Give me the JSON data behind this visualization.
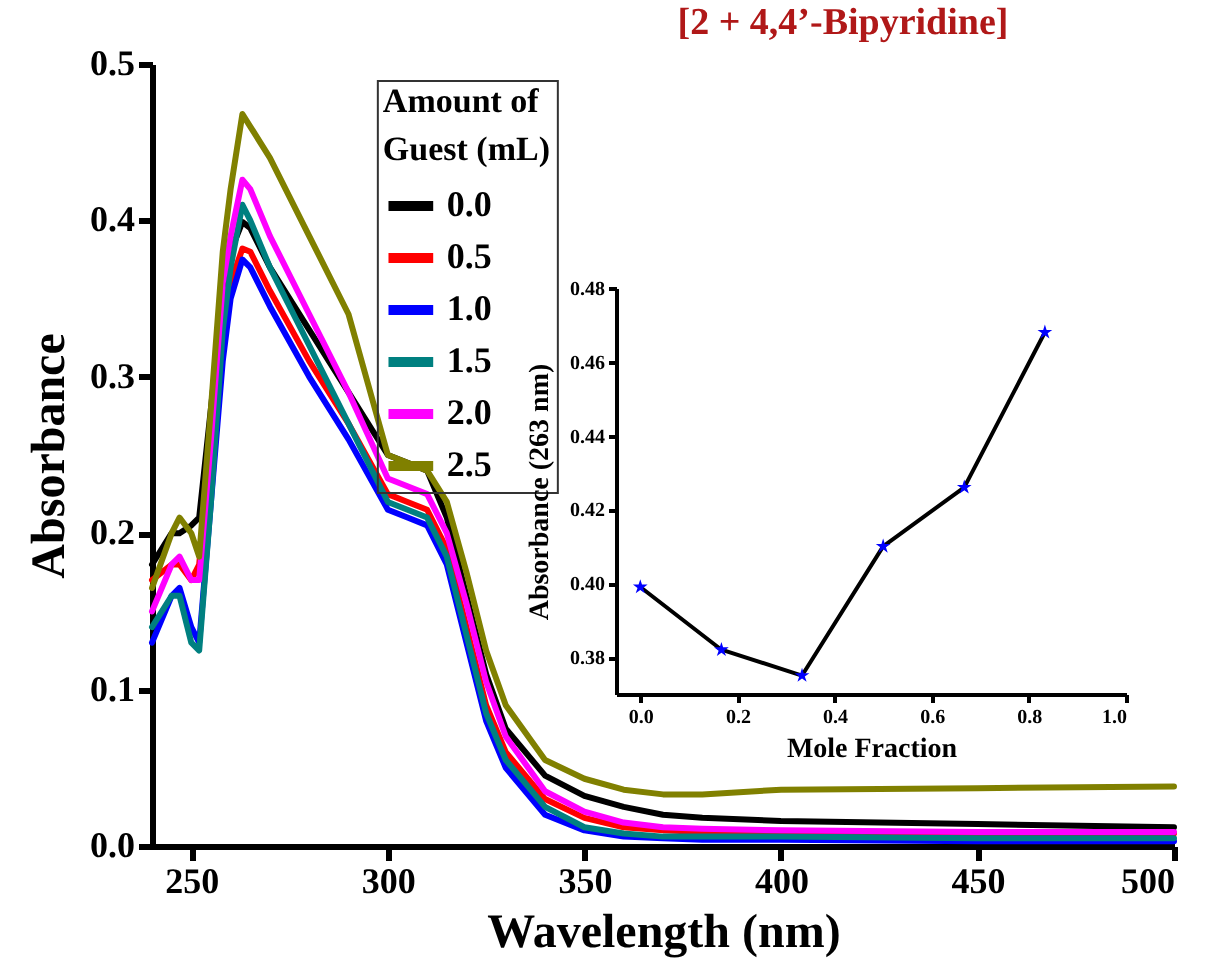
{
  "chart_data": [
    {
      "type": "line",
      "title": "[2 + 4,4’-Bipyridine]",
      "xlabel": "Wavelength (nm)",
      "ylabel": "Absorbance",
      "legend_title": "Amount of Guest (mL)",
      "legend": "top left",
      "x": [
        240,
        245,
        247,
        250,
        252,
        255,
        258,
        260,
        263,
        265,
        270,
        280,
        290,
        300,
        305,
        310,
        315,
        320,
        325,
        330,
        340,
        350,
        360,
        370,
        380,
        400,
        450,
        500
      ],
      "xlim": [
        240,
        500
      ],
      "xticks": [
        250,
        300,
        350,
        400,
        450,
        500
      ],
      "ylim": [
        0,
        0.5
      ],
      "yticks": [
        {
          "value": 0,
          "label": "0.0"
        },
        0.1,
        0.2,
        0.3,
        0.4,
        0.5
      ],
      "series": [
        {
          "name": "0.0",
          "color": "#000000",
          "values": [
            0.18,
            0.2,
            0.2,
            0.205,
            0.21,
            0.28,
            0.35,
            0.38,
            0.399,
            0.395,
            0.37,
            0.33,
            0.29,
            0.25,
            0.245,
            0.24,
            0.21,
            0.16,
            0.11,
            0.075,
            0.045,
            0.032,
            0.025,
            0.02,
            0.018,
            0.016,
            0.014,
            0.012
          ]
        },
        {
          "name": "0.5",
          "color": "#ff0000",
          "values": [
            0.17,
            0.18,
            0.18,
            0.17,
            0.18,
            0.26,
            0.33,
            0.36,
            0.382,
            0.38,
            0.355,
            0.31,
            0.27,
            0.225,
            0.22,
            0.215,
            0.19,
            0.14,
            0.09,
            0.06,
            0.03,
            0.018,
            0.012,
            0.01,
            0.009,
            0.008,
            0.008,
            0.008
          ]
        },
        {
          "name": "1.0",
          "color": "#0000ff",
          "values": [
            0.13,
            0.16,
            0.165,
            0.14,
            0.13,
            0.22,
            0.31,
            0.35,
            0.375,
            0.37,
            0.345,
            0.3,
            0.26,
            0.215,
            0.21,
            0.205,
            0.18,
            0.13,
            0.08,
            0.05,
            0.02,
            0.01,
            0.006,
            0.005,
            0.004,
            0.004,
            0.003,
            0.003
          ]
        },
        {
          "name": "1.5",
          "color": "#008080",
          "values": [
            0.14,
            0.16,
            0.16,
            0.13,
            0.125,
            0.22,
            0.33,
            0.37,
            0.41,
            0.4,
            0.37,
            0.32,
            0.27,
            0.22,
            0.215,
            0.21,
            0.185,
            0.135,
            0.085,
            0.055,
            0.025,
            0.012,
            0.008,
            0.006,
            0.006,
            0.006,
            0.005,
            0.005
          ]
        },
        {
          "name": "2.0",
          "color": "#ff00ff",
          "values": [
            0.15,
            0.18,
            0.185,
            0.17,
            0.17,
            0.26,
            0.36,
            0.39,
            0.426,
            0.42,
            0.39,
            0.34,
            0.29,
            0.235,
            0.23,
            0.225,
            0.2,
            0.155,
            0.105,
            0.07,
            0.035,
            0.022,
            0.015,
            0.012,
            0.011,
            0.01,
            0.009,
            0.009
          ]
        },
        {
          "name": "2.5",
          "color": "#808000",
          "values": [
            0.165,
            0.2,
            0.21,
            0.2,
            0.185,
            0.28,
            0.38,
            0.42,
            0.468,
            0.46,
            0.44,
            0.39,
            0.34,
            0.25,
            0.245,
            0.24,
            0.22,
            0.175,
            0.125,
            0.09,
            0.055,
            0.043,
            0.036,
            0.033,
            0.033,
            0.036,
            0.037,
            0.038
          ]
        }
      ]
    },
    {
      "type": "line",
      "xlabel": "Mole Fraction",
      "ylabel": "Absorbance (263 nm)",
      "marker": "star",
      "x": [
        0,
        0.167,
        0.333,
        0.5,
        0.667,
        0.833
      ],
      "xlim": [
        -0.05,
        1
      ],
      "xticks": [
        {
          "value": 0,
          "label": "0.0"
        },
        0.2,
        0.4,
        0.6,
        0.8,
        {
          "value": 1,
          "label": "1.0"
        }
      ],
      "ylim": [
        0.37,
        0.48
      ],
      "yticks": [
        0.38,
        {
          "value": 0.4,
          "label": "0.40"
        },
        0.42,
        0.44,
        0.46,
        0.48
      ],
      "series": [
        {
          "color": "#000000",
          "colors": [
            "#0000ff",
            "#0000ff",
            "#0000ff",
            "#0000ff",
            "#0000ff",
            "#0000ff"
          ],
          "values": [
            0.399,
            0.382,
            0.375,
            0.41,
            0.426,
            0.468
          ]
        }
      ]
    }
  ]
}
